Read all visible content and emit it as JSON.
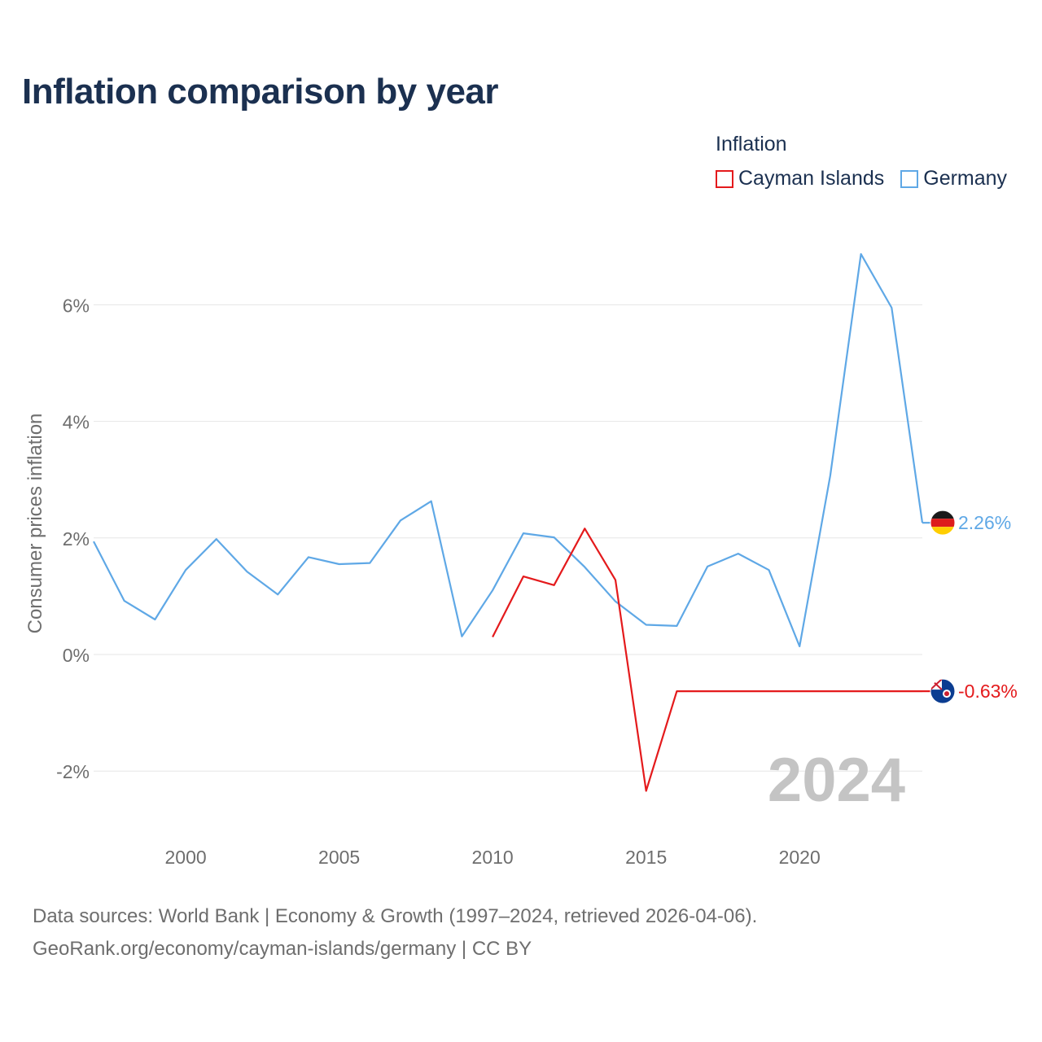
{
  "title": "Inflation comparison by year",
  "legend": {
    "title": "Inflation",
    "items": [
      {
        "name": "Cayman Islands",
        "color": "#e41a1c"
      },
      {
        "name": "Germany",
        "color": "#5fa8e6"
      }
    ]
  },
  "year_watermark": "2024",
  "footer": {
    "line1": "Data sources: World Bank | Economy & Growth (1997–2024, retrieved 2026-04-06).",
    "line2": "GeoRank.org/economy/cayman-islands/germany | CC BY"
  },
  "chart_data": {
    "type": "line",
    "title": "Inflation comparison by year",
    "xlabel": "",
    "ylabel": "Consumer prices inflation",
    "xlim": [
      1997,
      2024
    ],
    "ylim": [
      -3,
      8
    ],
    "x_ticks": [
      2000,
      2005,
      2010,
      2015,
      2020
    ],
    "y_ticks": [
      {
        "value": -2,
        "label": "-2%"
      },
      {
        "value": 0,
        "label": "0%"
      },
      {
        "value": 2,
        "label": "2%"
      },
      {
        "value": 4,
        "label": "4%"
      },
      {
        "value": 6,
        "label": "6%"
      }
    ],
    "grid": true,
    "series": [
      {
        "name": "Germany",
        "color": "#5fa8e6",
        "x": [
          1997,
          1998,
          1999,
          2000,
          2001,
          2002,
          2003,
          2004,
          2005,
          2006,
          2007,
          2008,
          2009,
          2010,
          2011,
          2012,
          2013,
          2014,
          2015,
          2016,
          2017,
          2018,
          2019,
          2020,
          2021,
          2022,
          2023,
          2024
        ],
        "values": [
          1.94,
          0.92,
          0.6,
          1.45,
          1.98,
          1.42,
          1.03,
          1.67,
          1.55,
          1.57,
          2.3,
          2.63,
          0.31,
          1.1,
          2.08,
          2.01,
          1.5,
          0.91,
          0.51,
          0.49,
          1.51,
          1.73,
          1.45,
          0.14,
          3.07,
          6.87,
          5.95,
          2.26
        ],
        "end_label": "2.26%"
      },
      {
        "name": "Cayman Islands",
        "color": "#e41a1c",
        "x": [
          2010,
          2011,
          2012,
          2013,
          2014,
          2015,
          2016,
          2017,
          2018,
          2019,
          2020,
          2021,
          2022,
          2023,
          2024
        ],
        "values": [
          0.3,
          1.34,
          1.19,
          2.16,
          1.28,
          -2.34,
          -0.63,
          -0.63,
          -0.63,
          -0.63,
          -0.63,
          -0.63,
          -0.63,
          -0.63,
          -0.63
        ],
        "end_label": "-0.63%"
      }
    ]
  }
}
